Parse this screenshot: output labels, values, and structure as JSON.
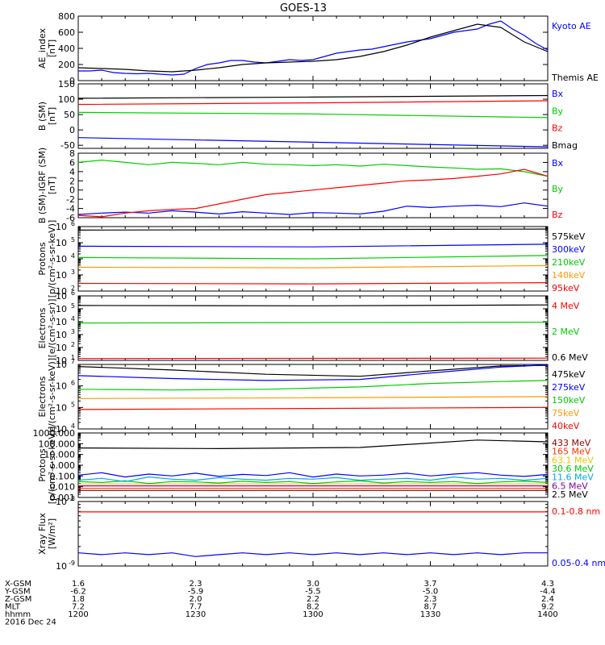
{
  "title": "GOES-13",
  "chart_data": [
    {
      "type": "line",
      "ylabel": [
        "AE_index",
        "[nT]"
      ],
      "ylim": [
        0,
        800
      ],
      "ticks": [
        {
          "v": 0,
          "t": "0"
        },
        {
          "v": 200,
          "t": "200"
        },
        {
          "v": 400,
          "t": "400"
        },
        {
          "v": 600,
          "t": "600"
        },
        {
          "v": 800,
          "t": "800"
        }
      ],
      "series": [
        {
          "name": "Kyoto AE",
          "color": "#0000ff",
          "x": [
            0,
            5,
            10,
            15,
            20,
            25,
            30,
            35,
            40,
            45,
            50,
            55,
            60,
            65,
            70,
            75,
            80,
            85,
            90,
            95,
            100,
            105,
            110,
            115,
            120,
            125,
            130,
            135,
            140,
            145,
            150,
            155,
            160,
            165,
            170,
            175,
            180,
            185,
            190,
            195,
            200
          ],
          "y": [
            120,
            120,
            130,
            100,
            90,
            85,
            90,
            80,
            70,
            80,
            150,
            200,
            220,
            250,
            250,
            230,
            220,
            240,
            260,
            250,
            260,
            300,
            340,
            360,
            380,
            390,
            420,
            450,
            480,
            500,
            520,
            560,
            600,
            620,
            640,
            700,
            740,
            640,
            560,
            460,
            380
          ]
        },
        {
          "name": "Themis AE",
          "color": "#000000",
          "x": [
            0,
            10,
            20,
            30,
            40,
            50,
            60,
            70,
            80,
            90,
            100,
            110,
            120,
            130,
            140,
            150,
            160,
            170,
            180,
            190,
            200
          ],
          "y": [
            160,
            150,
            140,
            120,
            110,
            130,
            160,
            200,
            220,
            230,
            240,
            260,
            300,
            360,
            440,
            540,
            620,
            700,
            660,
            480,
            360
          ]
        }
      ]
    },
    {
      "type": "line",
      "ylabel": [
        "B (SM)",
        "[nT]"
      ],
      "ylim": [
        -60,
        150
      ],
      "ticks": [
        {
          "v": -50,
          "t": "-50"
        },
        {
          "v": 0,
          "t": "0"
        },
        {
          "v": 50,
          "t": "50"
        },
        {
          "v": 100,
          "t": "100"
        },
        {
          "v": 150,
          "t": "150"
        }
      ],
      "series": [
        {
          "name": "Bx",
          "color": "#0000ff",
          "x": [
            0,
            200
          ],
          "y": [
            -25,
            -55
          ]
        },
        {
          "name": "By",
          "color": "#00cc00",
          "x": [
            0,
            100,
            200
          ],
          "y": [
            57,
            52,
            40
          ]
        },
        {
          "name": "Bz",
          "color": "#ff0000",
          "x": [
            0,
            100,
            200
          ],
          "y": [
            83,
            88,
            95
          ]
        },
        {
          "name": "Bmag",
          "color": "#000000",
          "x": [
            0,
            100,
            200
          ],
          "y": [
            103,
            107,
            112
          ]
        }
      ]
    },
    {
      "type": "line",
      "ylabel": [
        "B (SM)-IGRF (SM)",
        "[nT]"
      ],
      "ylim": [
        -6,
        8
      ],
      "ticks": [
        {
          "v": -6,
          "t": "-6"
        },
        {
          "v": -4,
          "t": "-4"
        },
        {
          "v": -2,
          "t": "-2"
        },
        {
          "v": 0,
          "t": "0"
        },
        {
          "v": 2,
          "t": "2"
        },
        {
          "v": 4,
          "t": "4"
        },
        {
          "v": 6,
          "t": "6"
        },
        {
          "v": 8,
          "t": "8"
        }
      ],
      "series": [
        {
          "name": "Bx",
          "color": "#0000ff",
          "x": [
            0,
            10,
            20,
            30,
            40,
            50,
            60,
            70,
            80,
            90,
            100,
            110,
            120,
            130,
            140,
            150,
            160,
            170,
            180,
            190,
            200
          ],
          "y": [
            -5.3,
            -5,
            -4.8,
            -5,
            -4.5,
            -4.8,
            -5.2,
            -4.7,
            -5,
            -5.3,
            -4.9,
            -5,
            -5.2,
            -4.6,
            -3.5,
            -3.8,
            -3.5,
            -3.3,
            -3.6,
            -2.8,
            -3.5
          ]
        },
        {
          "name": "By",
          "color": "#00cc00",
          "x": [
            0,
            10,
            20,
            30,
            40,
            50,
            60,
            70,
            80,
            90,
            100,
            110,
            120,
            130,
            140,
            150,
            160,
            170,
            180,
            190,
            200
          ],
          "y": [
            6,
            6.5,
            6,
            5.5,
            6,
            5.8,
            5.5,
            6,
            5.6,
            5.5,
            5.3,
            5.5,
            5.2,
            5.6,
            5.3,
            5,
            4.8,
            4.5,
            4.6,
            4,
            3
          ]
        },
        {
          "name": "Bz",
          "color": "#ff0000",
          "x": [
            0,
            10,
            20,
            30,
            40,
            50,
            60,
            70,
            80,
            90,
            100,
            110,
            120,
            130,
            140,
            150,
            160,
            170,
            180,
            190,
            200
          ],
          "y": [
            -5.5,
            -5.8,
            -5,
            -4.5,
            -4.2,
            -4,
            -3,
            -2,
            -1,
            -0.5,
            0,
            0.5,
            1,
            1.5,
            2,
            2.2,
            2.5,
            3,
            3.5,
            4.5,
            3
          ]
        }
      ]
    },
    {
      "type": "line",
      "scale": "log",
      "ylabel": [
        "Protons",
        "[p/(cm²-s-sr-keV)]"
      ],
      "ylim": [
        100,
        1000000
      ],
      "ticks": [
        {
          "v": 100,
          "t": "10",
          "s": "2"
        },
        {
          "v": 1000,
          "t": "10",
          "s": "3"
        },
        {
          "v": 10000,
          "t": "10",
          "s": "4"
        },
        {
          "v": 100000,
          "t": "10",
          "s": "5"
        },
        {
          "v": 1000000,
          "t": "10",
          "s": "6"
        }
      ],
      "series": [
        {
          "name": "575keV",
          "color": "#000000",
          "x": [
            0,
            200
          ],
          "y": [
            600000,
            700000
          ]
        },
        {
          "name": "300keV",
          "color": "#0000ff",
          "x": [
            0,
            100,
            200
          ],
          "y": [
            60000,
            55000,
            80000
          ]
        },
        {
          "name": "210keV",
          "color": "#00cc00",
          "x": [
            0,
            100,
            200
          ],
          "y": [
            12000,
            10000,
            16000
          ]
        },
        {
          "name": "140keV",
          "color": "#ff9900",
          "x": [
            0,
            100,
            200
          ],
          "y": [
            3000,
            2800,
            3800
          ]
        },
        {
          "name": "95keV",
          "color": "#ff0000",
          "x": [
            0,
            100,
            200
          ],
          "y": [
            300,
            280,
            330
          ]
        }
      ]
    },
    {
      "type": "line",
      "scale": "log",
      "ylabel": [
        "Electrons",
        "[e/(cm²-s-sr)]"
      ],
      "ylim": [
        10,
        1000000
      ],
      "ticks": [
        {
          "v": 10,
          "t": "10",
          "s": "1"
        },
        {
          "v": 100,
          "t": "10",
          "s": "2"
        },
        {
          "v": 1000,
          "t": "10",
          "s": "3"
        },
        {
          "v": 10000,
          "t": "10",
          "s": "4"
        },
        {
          "v": 100000,
          "t": "10",
          "s": "5"
        },
        {
          "v": 1000000,
          "t": "10",
          "s": "6"
        }
      ],
      "series": [
        {
          "name": "4 MeV",
          "color": "#ff0000",
          "x": [
            0,
            200
          ],
          "y": [
            14,
            15
          ]
        },
        {
          "name": "2 MeV",
          "color": "#00cc00",
          "x": [
            0,
            200
          ],
          "y": [
            8000,
            9000
          ]
        },
        {
          "name": "0.6 MeV",
          "color": "#000000",
          "x": [
            0,
            100,
            200
          ],
          "y": [
            180000,
            170000,
            200000
          ]
        }
      ]
    },
    {
      "type": "line",
      "scale": "log",
      "ylabel": [
        "Electrons",
        "[e/(cm²-s-sr-keV)]"
      ],
      "ylim": [
        10000,
        10000000
      ],
      "ticks": [
        {
          "v": 10000,
          "t": "10",
          "s": "4"
        },
        {
          "v": 100000,
          "t": "10",
          "s": "5"
        },
        {
          "v": 1000000,
          "t": "10",
          "s": "6"
        },
        {
          "v": 10000000,
          "t": "10",
          "s": "7"
        }
      ],
      "series": [
        {
          "name": "475keV",
          "color": "#000000",
          "x": [
            0,
            40,
            80,
            120,
            150,
            180,
            200
          ],
          "y": [
            8000000,
            5500000,
            3500000,
            2800000,
            5000000,
            8500000,
            9000000
          ]
        },
        {
          "name": "275keV",
          "color": "#0000ff",
          "x": [
            0,
            40,
            80,
            120,
            150,
            180,
            200
          ],
          "y": [
            3000000,
            2200000,
            1800000,
            2000000,
            4000000,
            7500000,
            9500000
          ]
        },
        {
          "name": "150keV",
          "color": "#00cc00",
          "x": [
            0,
            40,
            80,
            120,
            150,
            180,
            200
          ],
          "y": [
            700000,
            650000,
            700000,
            900000,
            1300000,
            1600000,
            1800000
          ]
        },
        {
          "name": "75keV",
          "color": "#ff9900",
          "x": [
            0,
            100,
            200
          ],
          "y": [
            260000,
            280000,
            320000
          ]
        },
        {
          "name": "40keV",
          "color": "#ff0000",
          "x": [
            0,
            100,
            200
          ],
          "y": [
            80000,
            90000,
            100000
          ]
        }
      ]
    },
    {
      "type": "line",
      "scale": "log",
      "ylabel": [
        "Protons",
        "[p/(cm²-s-sr-keV)]"
      ],
      "ylim": [
        0.001,
        1000
      ],
      "ticks": [
        {
          "v": 0.001,
          "t": "0.001"
        },
        {
          "v": 0.01,
          "t": "0.010"
        },
        {
          "v": 0.1,
          "t": "0.100"
        },
        {
          "v": 1,
          "t": "1.000"
        },
        {
          "v": 10,
          "t": "10.000"
        },
        {
          "v": 100,
          "t": "100.000"
        },
        {
          "v": 1000,
          "t": "1000.000"
        }
      ],
      "series": [
        {
          "name": "433 MeV",
          "color": "#8b0000",
          "x": [
            0,
            200
          ],
          "y": [
            0.0045,
            0.0045
          ]
        },
        {
          "name": "165 MeV",
          "color": "#ff3300",
          "x": [
            0,
            200
          ],
          "y": [
            0.007,
            0.007
          ]
        },
        {
          "name": "63.1 MeV",
          "color": "#e6c800",
          "x": [
            0,
            200
          ],
          "y": [
            0.018,
            0.018
          ]
        },
        {
          "name": "30.6 MeV",
          "color": "#00cc00",
          "x": [
            0,
            10,
            20,
            30,
            40,
            50,
            60,
            70,
            80,
            90,
            100,
            110,
            120,
            130,
            140,
            150,
            160,
            170,
            180,
            190,
            200
          ],
          "y": [
            0.03,
            0.025,
            0.035,
            0.02,
            0.03,
            0.028,
            0.022,
            0.032,
            0.025,
            0.03,
            0.02,
            0.028,
            0.035,
            0.022,
            0.03,
            0.025,
            0.03,
            0.02,
            0.028,
            0.032,
            0.025
          ]
        },
        {
          "name": "11.6 MeV",
          "color": "#00aadd",
          "x": [
            0,
            10,
            20,
            30,
            40,
            50,
            60,
            70,
            80,
            90,
            100,
            110,
            120,
            130,
            140,
            150,
            160,
            170,
            180,
            190,
            200
          ],
          "y": [
            0.04,
            0.06,
            0.03,
            0.08,
            0.05,
            0.04,
            0.07,
            0.05,
            0.04,
            0.06,
            0.05,
            0.07,
            0.04,
            0.05,
            0.06,
            0.04,
            0.08,
            0.05,
            0.06,
            0.04,
            0.06
          ]
        },
        {
          "name": "6.5 MeV",
          "color": "#8800aa",
          "x": [
            0,
            200
          ],
          "y": [
            0.012,
            0.012
          ]
        },
        {
          "name": "2.5 MeV",
          "color": "#000000",
          "x": [
            0,
            60,
            120,
            170,
            200
          ],
          "y": [
            40,
            35,
            45,
            220,
            150
          ]
        },
        {
          "name": "",
          "color": "#0000ff",
          "x": [
            0,
            10,
            20,
            30,
            40,
            50,
            60,
            70,
            80,
            90,
            100,
            110,
            120,
            130,
            140,
            150,
            160,
            170,
            180,
            190,
            200
          ],
          "y": [
            0.12,
            0.2,
            0.08,
            0.15,
            0.1,
            0.18,
            0.09,
            0.14,
            0.11,
            0.2,
            0.08,
            0.15,
            0.1,
            0.12,
            0.18,
            0.1,
            0.15,
            0.2,
            0.12,
            0.09,
            0.14
          ]
        }
      ]
    },
    {
      "type": "line",
      "scale": "log",
      "ylabel": [
        "Xray Flux",
        "[W/m²]"
      ],
      "ylim": [
        1e-09,
        1e-08
      ],
      "ticks": [
        {
          "v": 1e-09,
          "t": "10",
          "s": "-9"
        },
        {
          "v": 1e-08,
          "t": "10",
          "s": "-8"
        }
      ],
      "series": [
        {
          "name": "0.1-0.8 nm",
          "color": "#ff0000",
          "x": [
            0,
            200
          ],
          "y": [
            6.9e-09,
            6.9e-09
          ]
        },
        {
          "name": "0.05-0.4 nm",
          "color": "#0000ff",
          "x": [
            0,
            10,
            20,
            30,
            40,
            50,
            60,
            70,
            80,
            90,
            100,
            110,
            120,
            130,
            140,
            150,
            160,
            170,
            180,
            190,
            200
          ],
          "y": [
            1.6e-09,
            1.5e-09,
            1.6e-09,
            1.5e-09,
            1.6e-09,
            1.4e-09,
            1.5e-09,
            1.6e-09,
            1.5e-09,
            1.6e-09,
            1.5e-09,
            1.6e-09,
            1.5e-09,
            1.6e-09,
            1.5e-09,
            1.6e-09,
            1.5e-09,
            1.6e-09,
            1.5e-09,
            1.6e-09,
            1.6e-09
          ]
        }
      ]
    }
  ],
  "xaxis": {
    "positions": [
      0,
      50,
      100,
      150,
      200
    ],
    "rows": [
      {
        "label": "X-GSM",
        "values": [
          "1.6",
          "2.3",
          "3.0",
          "3.7",
          "4.3"
        ]
      },
      {
        "label": "Y-GSM",
        "values": [
          "-6.2",
          "-5.9",
          "-5.5",
          "-5.0",
          "-4.4"
        ]
      },
      {
        "label": "Z-GSM",
        "values": [
          "1.8",
          "2.0",
          "2.2",
          "2.3",
          "2.4"
        ]
      },
      {
        "label": "MLT",
        "values": [
          "7.2",
          "7.7",
          "8.2",
          "8.7",
          "9.2"
        ]
      },
      {
        "label": "hhmm",
        "values": [
          "1200",
          "1230",
          "1300",
          "1330",
          "1400"
        ]
      }
    ],
    "date": "2016 Dec 24"
  }
}
